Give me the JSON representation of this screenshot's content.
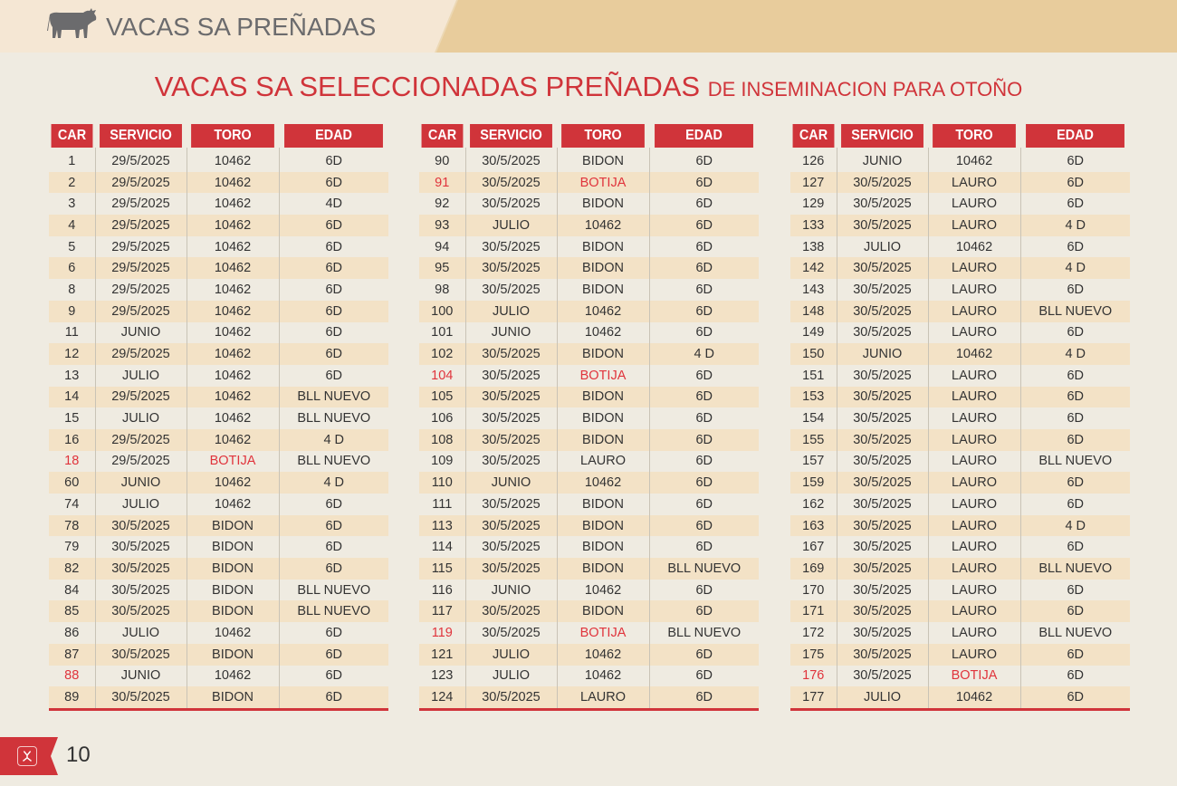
{
  "header": {
    "section_title": "VACAS SA PREÑADAS",
    "icon": "cow-icon"
  },
  "title": {
    "main": "VACAS SA SELECCIONADAS PREÑADAS",
    "sub": "DE INSEMINACION PARA OTOÑO"
  },
  "colors": {
    "accent": "#d0343a",
    "highlight_text": "#e0343c",
    "row_alt": "#f3e2c6",
    "background": "#efebe1"
  },
  "columns": [
    "CAR",
    "SERVICIO",
    "TORO",
    "EDAD"
  ],
  "tables": [
    {
      "rows": [
        [
          "1",
          "29/5/2025",
          "10462",
          "6D"
        ],
        [
          "2",
          "29/5/2025",
          "10462",
          "6D"
        ],
        [
          "3",
          "29/5/2025",
          "10462",
          "4D"
        ],
        [
          "4",
          "29/5/2025",
          "10462",
          "6D"
        ],
        [
          "5",
          "29/5/2025",
          "10462",
          "6D"
        ],
        [
          "6",
          "29/5/2025",
          "10462",
          "6D"
        ],
        [
          "8",
          "29/5/2025",
          "10462",
          "6D"
        ],
        [
          "9",
          "29/5/2025",
          "10462",
          "6D"
        ],
        [
          "11",
          "JUNIO",
          "10462",
          "6D"
        ],
        [
          "12",
          "29/5/2025",
          "10462",
          "6D"
        ],
        [
          "13",
          "JULIO",
          "10462",
          "6D"
        ],
        [
          "14",
          "29/5/2025",
          "10462",
          "BLL NUEVO"
        ],
        [
          "15",
          "JULIO",
          "10462",
          "BLL NUEVO"
        ],
        [
          "16",
          "29/5/2025",
          "10462",
          "4 D"
        ],
        [
          "18",
          "29/5/2025",
          "BOTIJA",
          "BLL NUEVO"
        ],
        [
          "60",
          "JUNIO",
          "10462",
          "4 D"
        ],
        [
          "74",
          "JULIO",
          "10462",
          "6D"
        ],
        [
          "78",
          "30/5/2025",
          "BIDON",
          "6D"
        ],
        [
          "79",
          "30/5/2025",
          "BIDON",
          "6D"
        ],
        [
          "82",
          "30/5/2025",
          "BIDON",
          "6D"
        ],
        [
          "84",
          "30/5/2025",
          "BIDON",
          "BLL NUEVO"
        ],
        [
          "85",
          "30/5/2025",
          "BIDON",
          "BLL NUEVO"
        ],
        [
          "86",
          "JULIO",
          "10462",
          "6D"
        ],
        [
          "87",
          "30/5/2025",
          "BIDON",
          "6D"
        ],
        [
          "88",
          "JUNIO",
          "10462",
          "6D"
        ],
        [
          "89",
          "30/5/2025",
          "BIDON",
          "6D"
        ]
      ],
      "highlighted_car": [
        "18",
        "88"
      ]
    },
    {
      "rows": [
        [
          "90",
          "30/5/2025",
          "BIDON",
          "6D"
        ],
        [
          "91",
          "30/5/2025",
          "BOTIJA",
          "6D"
        ],
        [
          "92",
          "30/5/2025",
          "BIDON",
          "6D"
        ],
        [
          "93",
          "JULIO",
          "10462",
          "6D"
        ],
        [
          "94",
          "30/5/2025",
          "BIDON",
          "6D"
        ],
        [
          "95",
          "30/5/2025",
          "BIDON",
          "6D"
        ],
        [
          "98",
          "30/5/2025",
          "BIDON",
          "6D"
        ],
        [
          "100",
          "JULIO",
          "10462",
          "6D"
        ],
        [
          "101",
          "JUNIO",
          "10462",
          "6D"
        ],
        [
          "102",
          "30/5/2025",
          "BIDON",
          "4 D"
        ],
        [
          "104",
          "30/5/2025",
          "BOTIJA",
          "6D"
        ],
        [
          "105",
          "30/5/2025",
          "BIDON",
          "6D"
        ],
        [
          "106",
          "30/5/2025",
          "BIDON",
          "6D"
        ],
        [
          "108",
          "30/5/2025",
          "BIDON",
          "6D"
        ],
        [
          "109",
          "30/5/2025",
          "LAURO",
          "6D"
        ],
        [
          "110",
          "JUNIO",
          "10462",
          "6D"
        ],
        [
          "111",
          "30/5/2025",
          "BIDON",
          "6D"
        ],
        [
          "113",
          "30/5/2025",
          "BIDON",
          "6D"
        ],
        [
          "114",
          "30/5/2025",
          "BIDON",
          "6D"
        ],
        [
          "115",
          "30/5/2025",
          "BIDON",
          "BLL NUEVO"
        ],
        [
          "116",
          "JUNIO",
          "10462",
          "6D"
        ],
        [
          "117",
          "30/5/2025",
          "BIDON",
          "6D"
        ],
        [
          "119",
          "30/5/2025",
          "BOTIJA",
          "BLL NUEVO"
        ],
        [
          "121",
          "JULIO",
          "10462",
          "6D"
        ],
        [
          "123",
          "JULIO",
          "10462",
          "6D"
        ],
        [
          "124",
          "30/5/2025",
          "LAURO",
          "6D"
        ]
      ],
      "highlighted_car": [
        "91",
        "104",
        "119"
      ]
    },
    {
      "rows": [
        [
          "126",
          "JUNIO",
          "10462",
          "6D"
        ],
        [
          "127",
          "30/5/2025",
          "LAURO",
          "6D"
        ],
        [
          "129",
          "30/5/2025",
          "LAURO",
          "6D"
        ],
        [
          "133",
          "30/5/2025",
          "LAURO",
          "4 D"
        ],
        [
          "138",
          "JULIO",
          "10462",
          "6D"
        ],
        [
          "142",
          "30/5/2025",
          "LAURO",
          "4 D"
        ],
        [
          "143",
          "30/5/2025",
          "LAURO",
          "6D"
        ],
        [
          "148",
          "30/5/2025",
          "LAURO",
          "BLL NUEVO"
        ],
        [
          "149",
          "30/5/2025",
          "LAURO",
          "6D"
        ],
        [
          "150",
          "JUNIO",
          "10462",
          "4 D"
        ],
        [
          "151",
          "30/5/2025",
          "LAURO",
          "6D"
        ],
        [
          "153",
          "30/5/2025",
          "LAURO",
          "6D"
        ],
        [
          "154",
          "30/5/2025",
          "LAURO",
          "6D"
        ],
        [
          "155",
          "30/5/2025",
          "LAURO",
          "6D"
        ],
        [
          "157",
          "30/5/2025",
          "LAURO",
          "BLL NUEVO"
        ],
        [
          "159",
          "30/5/2025",
          "LAURO",
          "6D"
        ],
        [
          "162",
          "30/5/2025",
          "LAURO",
          "6D"
        ],
        [
          "163",
          "30/5/2025",
          "LAURO",
          "4 D"
        ],
        [
          "167",
          "30/5/2025",
          "LAURO",
          "6D"
        ],
        [
          "169",
          "30/5/2025",
          "LAURO",
          "BLL NUEVO"
        ],
        [
          "170",
          "30/5/2025",
          "LAURO",
          "6D"
        ],
        [
          "171",
          "30/5/2025",
          "LAURO",
          "6D"
        ],
        [
          "172",
          "30/5/2025",
          "LAURO",
          "BLL NUEVO"
        ],
        [
          "175",
          "30/5/2025",
          "LAURO",
          "6D"
        ],
        [
          "176",
          "30/5/2025",
          "BOTIJA",
          "6D"
        ],
        [
          "177",
          "JULIO",
          "10462",
          "6D"
        ]
      ],
      "highlighted_car": [
        "176"
      ]
    }
  ],
  "footer": {
    "page_number": "10",
    "icon": "antibody-icon"
  }
}
